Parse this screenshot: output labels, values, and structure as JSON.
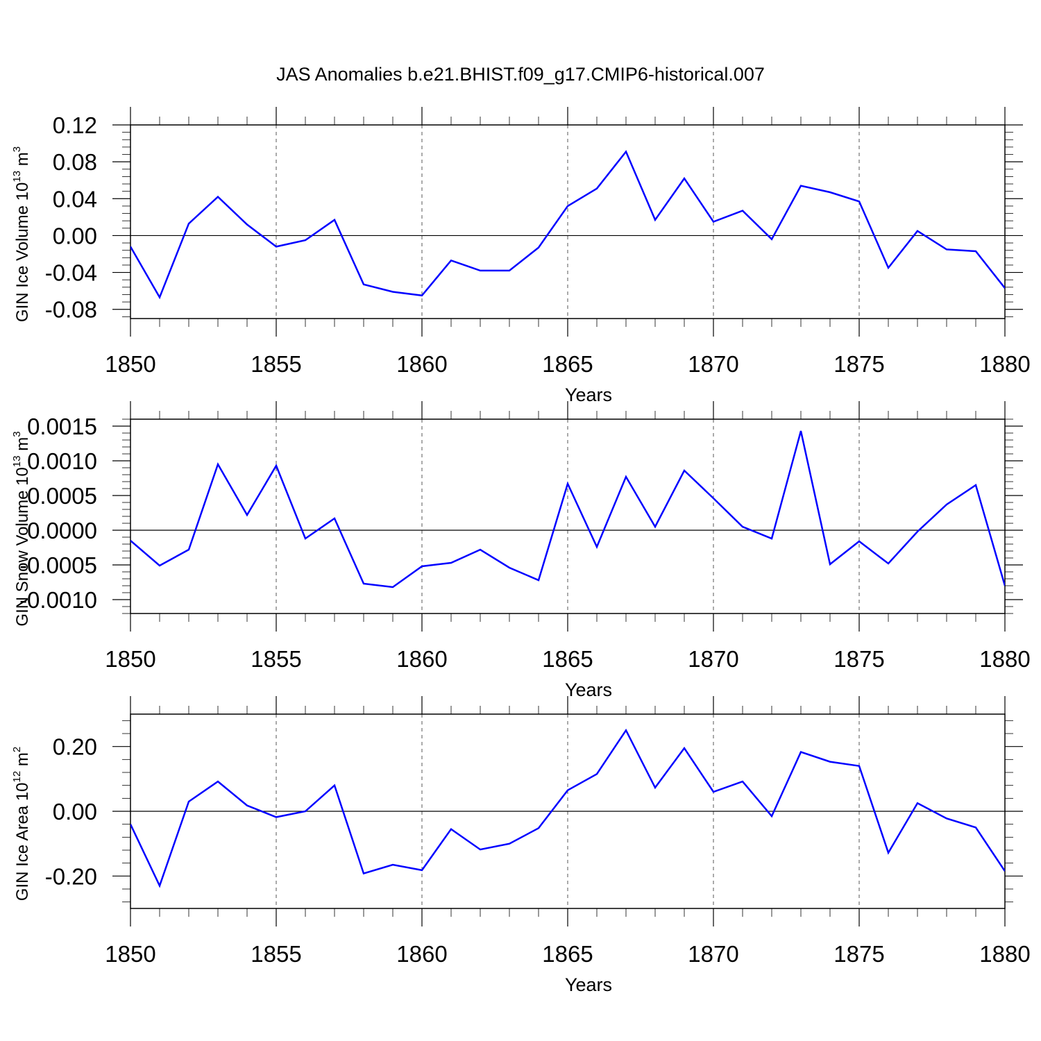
{
  "title": "JAS Anomalies b.e21.BHIST.f09_g17.CMIP6-historical.007",
  "colors": {
    "line": "#0000ff",
    "axis": "#000000"
  },
  "chart_data": [
    {
      "type": "line",
      "ylabel": {
        "prefix": "GIN Ice Volume 10",
        "exp": "13",
        "unit": " m",
        "unit_exp": "3"
      },
      "xlabel": "Years",
      "xlim": [
        1850,
        1880
      ],
      "ylim": [
        -0.09,
        0.12
      ],
      "xticks": [
        1850,
        1855,
        1860,
        1865,
        1870,
        1875,
        1880
      ],
      "yticks": [
        -0.08,
        -0.04,
        0.0,
        0.04,
        0.08,
        0.12
      ],
      "ytick_labels": [
        "-0.08",
        "-0.04",
        "0.00",
        "0.04",
        "0.08",
        "0.12"
      ],
      "grid_x": true,
      "x": [
        1850,
        1851,
        1852,
        1853,
        1854,
        1855,
        1856,
        1857,
        1858,
        1859,
        1860,
        1861,
        1862,
        1863,
        1864,
        1865,
        1866,
        1867,
        1868,
        1869,
        1870,
        1871,
        1872,
        1873,
        1874,
        1875,
        1876,
        1877,
        1878,
        1879,
        1880
      ],
      "series": [
        {
          "name": "GIN Ice Volume",
          "values": [
            -0.012,
            -0.067,
            0.013,
            0.042,
            0.012,
            -0.012,
            -0.005,
            0.017,
            -0.053,
            -0.061,
            -0.065,
            -0.027,
            -0.038,
            -0.038,
            -0.013,
            0.032,
            0.051,
            0.091,
            0.017,
            0.062,
            0.015,
            0.027,
            -0.004,
            0.054,
            0.047,
            0.037,
            -0.035,
            0.005,
            -0.015,
            -0.017,
            -0.057
          ]
        }
      ]
    },
    {
      "type": "line",
      "ylabel": {
        "prefix": "GIN Snow Volume 10",
        "exp": "13",
        "unit": " m",
        "unit_exp": "3"
      },
      "xlabel": "Years",
      "xlim": [
        1850,
        1880
      ],
      "ylim": [
        -0.0012,
        0.0016
      ],
      "xticks": [
        1850,
        1855,
        1860,
        1865,
        1870,
        1875,
        1880
      ],
      "yticks": [
        -0.001,
        -0.0005,
        0.0,
        0.0005,
        0.001,
        0.0015
      ],
      "ytick_labels": [
        "-0.0010",
        "-0.0005",
        "0.0000",
        "0.0005",
        "0.0010",
        "0.0015"
      ],
      "grid_x": true,
      "x": [
        1850,
        1851,
        1852,
        1853,
        1854,
        1855,
        1856,
        1857,
        1858,
        1859,
        1860,
        1861,
        1862,
        1863,
        1864,
        1865,
        1866,
        1867,
        1868,
        1869,
        1870,
        1871,
        1872,
        1873,
        1874,
        1875,
        1876,
        1877,
        1878,
        1879,
        1880
      ],
      "series": [
        {
          "name": "GIN Snow Volume",
          "values": [
            -0.00015,
            -0.00051,
            -0.00028,
            0.00095,
            0.00022,
            0.00093,
            -0.00012,
            0.00017,
            -0.00077,
            -0.00082,
            -0.00052,
            -0.00047,
            -0.00028,
            -0.00054,
            -0.00072,
            0.00067,
            -0.00024,
            0.00077,
            5e-05,
            0.00086,
            0.00046,
            5e-05,
            -0.00012,
            0.00143,
            -0.00049,
            -0.00016,
            -0.00048,
            -2e-05,
            0.00037,
            0.00065,
            -0.0008
          ]
        }
      ]
    },
    {
      "type": "line",
      "ylabel": {
        "prefix": "GIN Ice Area 10",
        "exp": "12",
        "unit": " m",
        "unit_exp": "2"
      },
      "xlabel": "Years",
      "xlim": [
        1850,
        1880
      ],
      "ylim": [
        -0.3,
        0.3
      ],
      "xticks": [
        1850,
        1855,
        1860,
        1865,
        1870,
        1875,
        1880
      ],
      "yticks": [
        -0.2,
        0.0,
        0.2
      ],
      "ytick_labels": [
        "-0.20",
        "0.00",
        "0.20"
      ],
      "grid_x": true,
      "x": [
        1850,
        1851,
        1852,
        1853,
        1854,
        1855,
        1856,
        1857,
        1858,
        1859,
        1860,
        1861,
        1862,
        1863,
        1864,
        1865,
        1866,
        1867,
        1868,
        1869,
        1870,
        1871,
        1872,
        1873,
        1874,
        1875,
        1876,
        1877,
        1878,
        1879,
        1880
      ],
      "series": [
        {
          "name": "GIN Ice Area",
          "values": [
            -0.04,
            -0.23,
            0.03,
            0.092,
            0.018,
            -0.018,
            0.0,
            0.08,
            -0.192,
            -0.165,
            -0.182,
            -0.055,
            -0.118,
            -0.1,
            -0.052,
            0.065,
            0.115,
            0.25,
            0.073,
            0.195,
            0.06,
            0.092,
            -0.015,
            0.183,
            0.153,
            0.14,
            -0.128,
            0.025,
            -0.022,
            -0.05,
            -0.185
          ]
        }
      ]
    }
  ]
}
